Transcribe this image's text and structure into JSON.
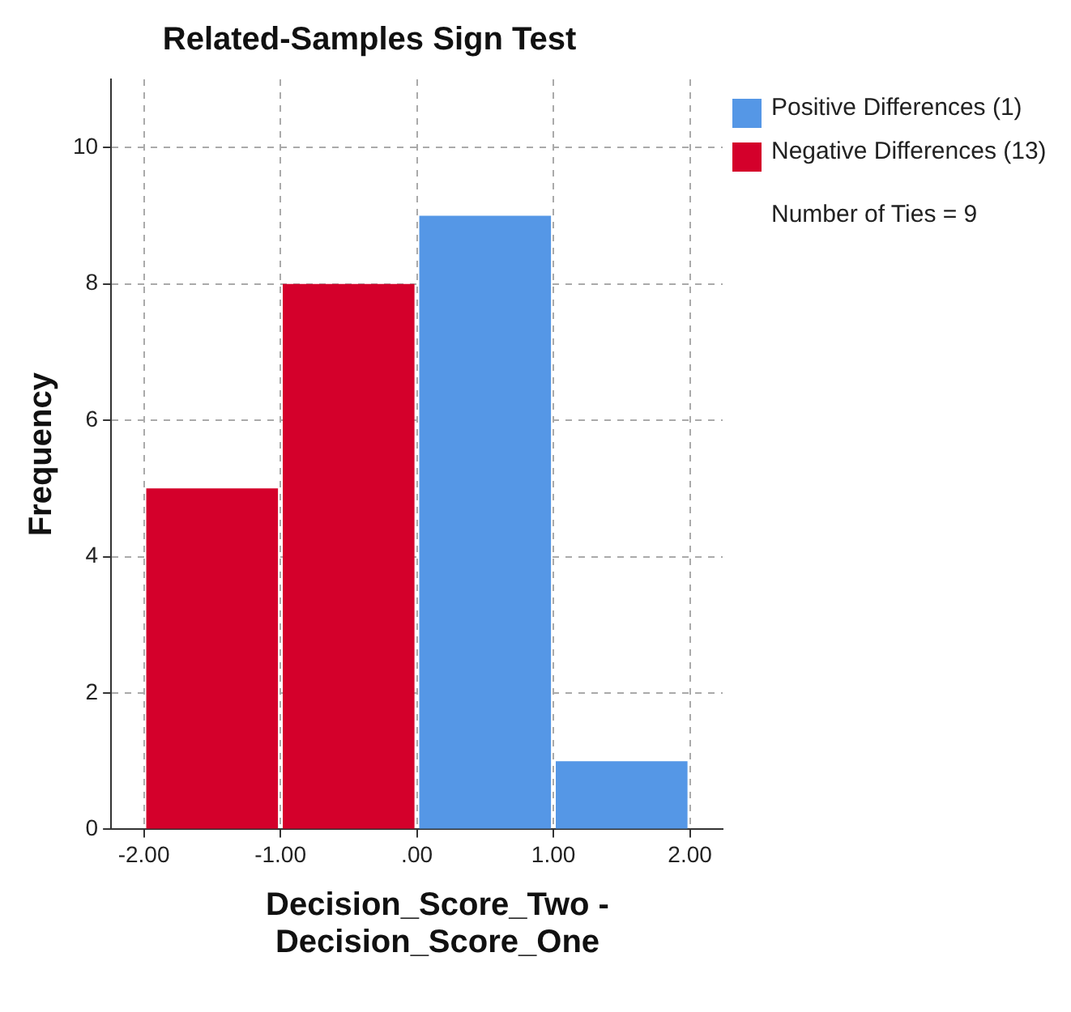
{
  "chart_data": {
    "type": "histogram",
    "title": "Related-Samples Sign Test",
    "xlabel": "Decision_Score_Two - Decision_Score_One",
    "ylabel": "Frequency",
    "bins": [
      -2,
      -1,
      0,
      1,
      2
    ],
    "series": [
      {
        "name": "Positive Differences (1)",
        "color": "#5597e6",
        "values": [
          null,
          null,
          9,
          1
        ]
      },
      {
        "name": "Negative Differences (13)",
        "color": "#d4002b",
        "values": [
          5,
          8,
          null,
          null
        ]
      }
    ],
    "xlim": [
      -2.24,
      2.24
    ],
    "xticks": [
      {
        "value": -2,
        "label": "-2.00"
      },
      {
        "value": -1,
        "label": "-1.00"
      },
      {
        "value": 0,
        "label": ".00"
      },
      {
        "value": 1,
        "label": "1.00"
      },
      {
        "value": 2,
        "label": "2.00"
      }
    ],
    "ylim": [
      0,
      11
    ],
    "yticks": [
      0,
      2,
      4,
      6,
      8,
      10
    ],
    "grid": true,
    "legend": "right",
    "annotations": [
      "Number of Ties = 9"
    ]
  }
}
